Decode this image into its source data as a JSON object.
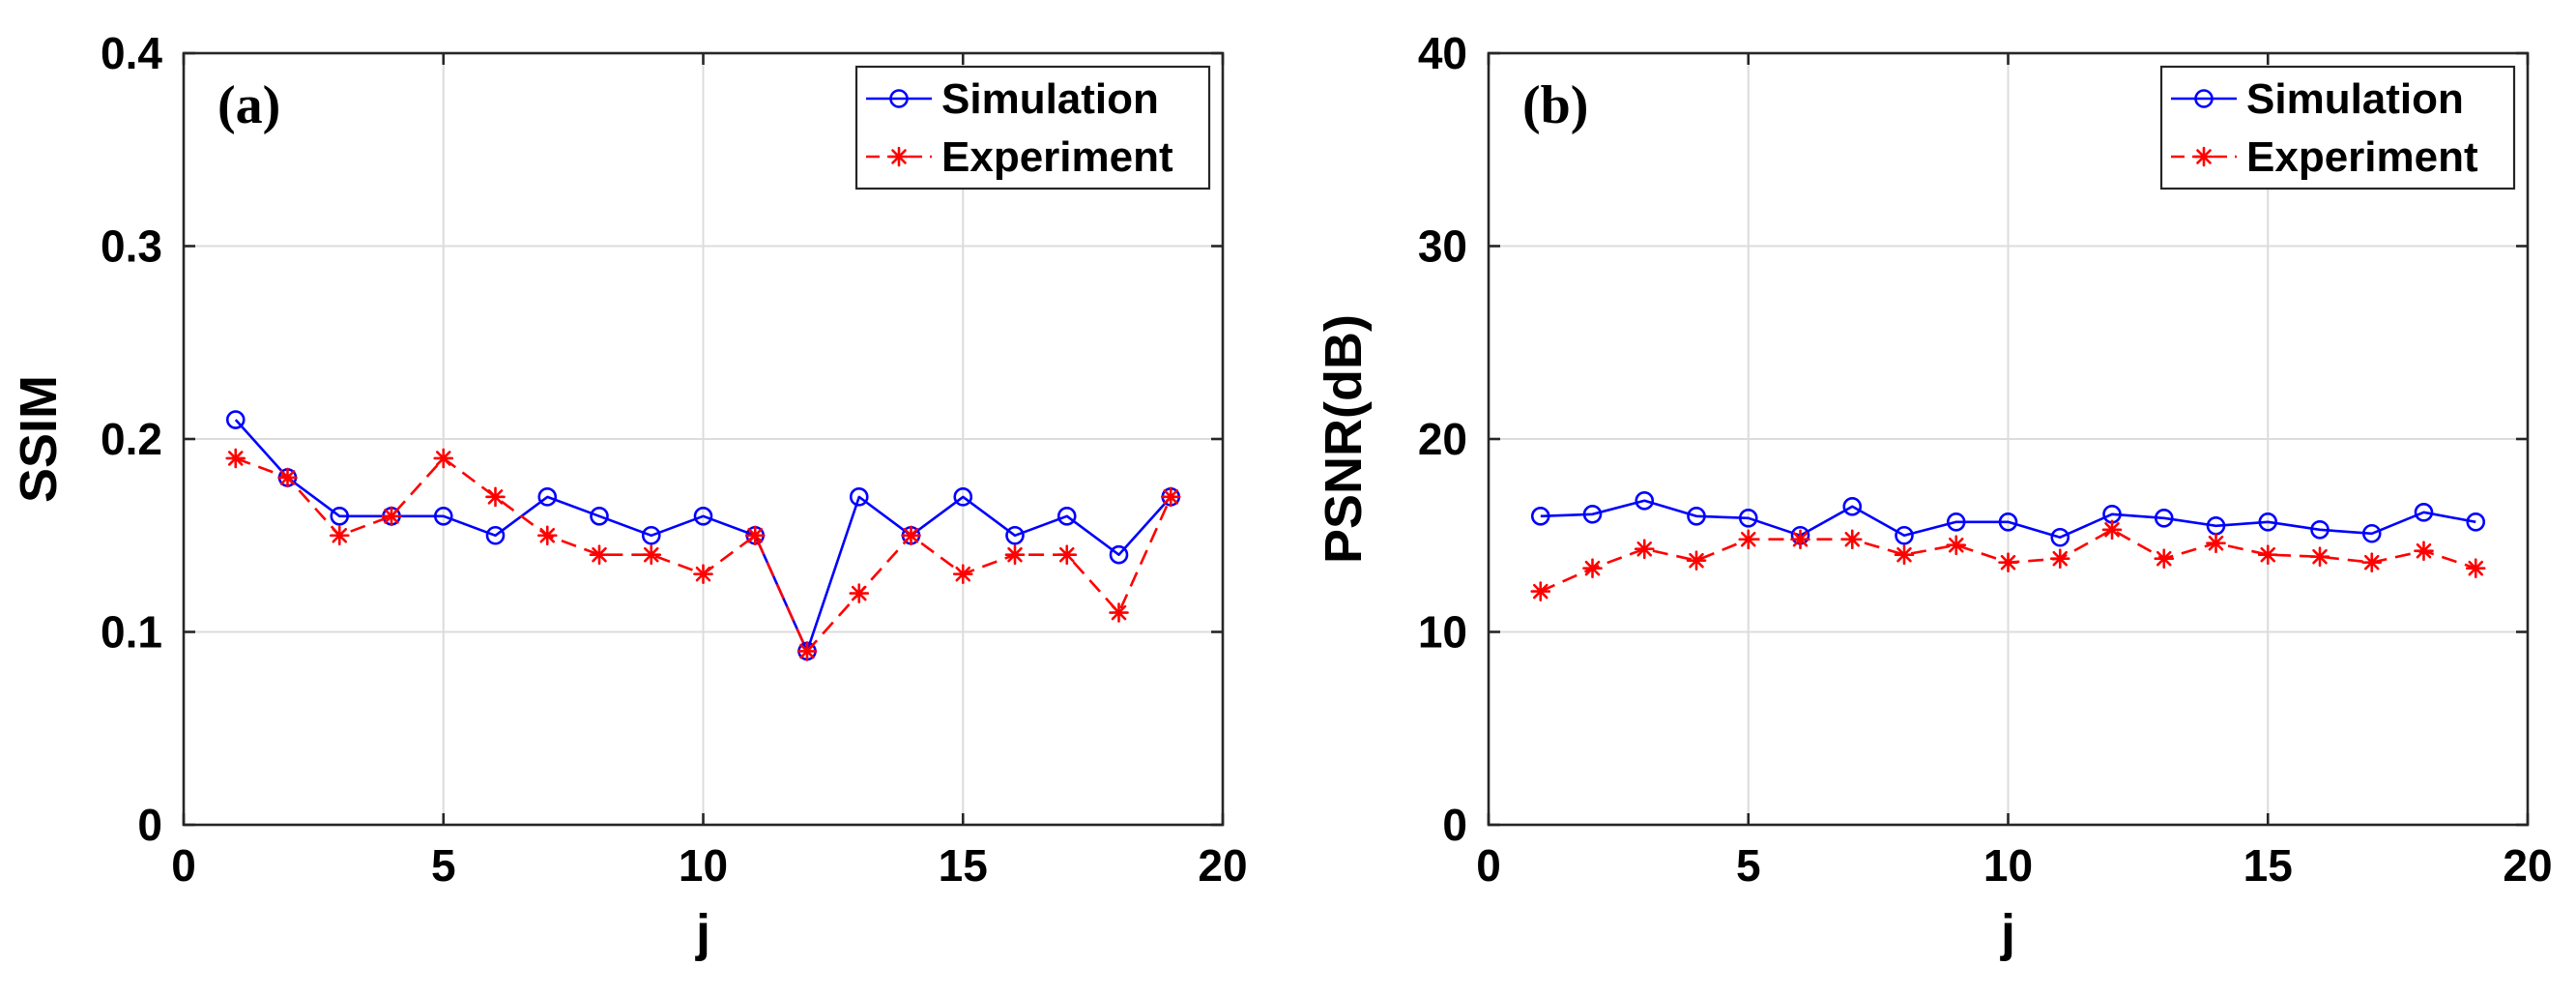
{
  "chart_data": [
    {
      "type": "line",
      "panel_label": "(a)",
      "title": "",
      "xlabel": "j",
      "ylabel": "SSIM",
      "xlim": [
        0,
        20
      ],
      "ylim": [
        0,
        0.4
      ],
      "xticks": [
        0,
        5,
        10,
        15,
        20
      ],
      "xtick_labels": [
        "0",
        "5",
        "10",
        "15",
        "20"
      ],
      "yticks": [
        0,
        0.1,
        0.2,
        0.3,
        0.4
      ],
      "ytick_labels": [
        "0",
        "0.1",
        "0.2",
        "0.3",
        "0.4"
      ],
      "grid": true,
      "legend_position": "top-right",
      "x": [
        1,
        2,
        3,
        4,
        5,
        6,
        7,
        8,
        9,
        10,
        11,
        12,
        13,
        14,
        15,
        16,
        17,
        18,
        19
      ],
      "series": [
        {
          "name": "Simulation",
          "color": "#0000ff",
          "marker": "circle",
          "line_style": "solid",
          "values": [
            0.21,
            0.18,
            0.16,
            0.16,
            0.16,
            0.15,
            0.17,
            0.16,
            0.15,
            0.16,
            0.15,
            0.09,
            0.17,
            0.15,
            0.17,
            0.15,
            0.16,
            0.14,
            0.17
          ]
        },
        {
          "name": "Experiment",
          "color": "#ff0000",
          "marker": "asterisk",
          "line_style": "dashed",
          "values": [
            0.19,
            0.18,
            0.15,
            0.16,
            0.19,
            0.17,
            0.15,
            0.14,
            0.14,
            0.13,
            0.15,
            0.09,
            0.12,
            0.15,
            0.13,
            0.14,
            0.14,
            0.11,
            0.17
          ]
        }
      ]
    },
    {
      "type": "line",
      "panel_label": "(b)",
      "title": "",
      "xlabel": "j",
      "ylabel": "PSNR(dB)",
      "xlim": [
        0,
        20
      ],
      "ylim": [
        0,
        40
      ],
      "xticks": [
        0,
        5,
        10,
        15,
        20
      ],
      "xtick_labels": [
        "0",
        "5",
        "10",
        "15",
        "20"
      ],
      "yticks": [
        0,
        10,
        20,
        30,
        40
      ],
      "ytick_labels": [
        "0",
        "10",
        "20",
        "30",
        "40"
      ],
      "grid": true,
      "legend_position": "top-right",
      "x": [
        1,
        2,
        3,
        4,
        5,
        6,
        7,
        8,
        9,
        10,
        11,
        12,
        13,
        14,
        15,
        16,
        17,
        18,
        19
      ],
      "series": [
        {
          "name": "Simulation",
          "color": "#0000ff",
          "marker": "circle",
          "line_style": "solid",
          "values": [
            16.0,
            16.1,
            16.8,
            16.0,
            15.9,
            15.0,
            16.5,
            15.0,
            15.7,
            15.7,
            14.9,
            16.1,
            15.9,
            15.5,
            15.7,
            15.3,
            15.1,
            16.2,
            15.7
          ]
        },
        {
          "name": "Experiment",
          "color": "#ff0000",
          "marker": "asterisk",
          "line_style": "dashed",
          "values": [
            12.1,
            13.3,
            14.3,
            13.7,
            14.8,
            14.8,
            14.8,
            14.0,
            14.5,
            13.6,
            13.8,
            15.3,
            13.8,
            14.6,
            14.0,
            13.9,
            13.6,
            14.2,
            13.3
          ]
        }
      ]
    }
  ]
}
